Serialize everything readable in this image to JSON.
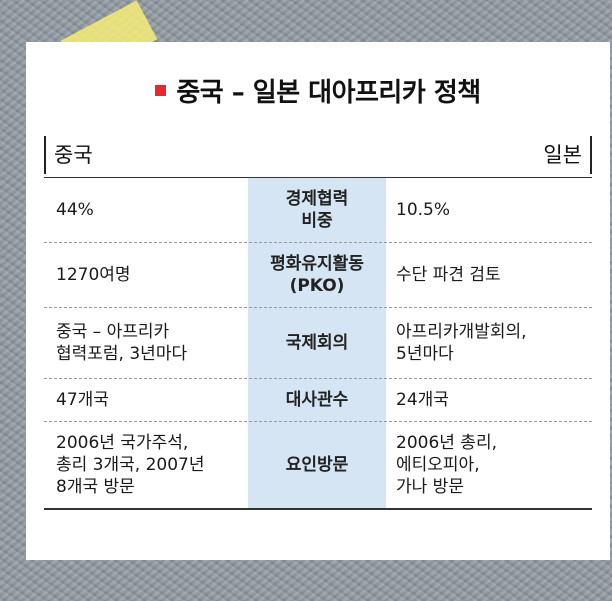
{
  "title": "중국 – 일본 대아프리카 정책",
  "columns": {
    "left": "중국",
    "right": "일본"
  },
  "rows": [
    {
      "category": "경제협력\n비중",
      "china": "44%",
      "japan": "10.5%"
    },
    {
      "category": "평화유지활동\n(PKO)",
      "china": "1270여명",
      "japan": "수단 파견 검토"
    },
    {
      "category": "국제회의",
      "china": "중국 – 아프리카\n협력포럼, 3년마다",
      "japan": "아프리카개발회의,\n5년마다"
    },
    {
      "category": "대사관수",
      "china": "47개국",
      "japan": "24개국"
    },
    {
      "category": "요인방문",
      "china": "2006년 국가주석,\n총리 3개국, 2007년\n8개국 방문",
      "japan": "2006년 총리,\n에티오피아,\n가나 방문"
    }
  ],
  "colors": {
    "accent_square": "#e32a2e",
    "category_column": "#d5e5f4",
    "tape": "#f6ec78"
  }
}
